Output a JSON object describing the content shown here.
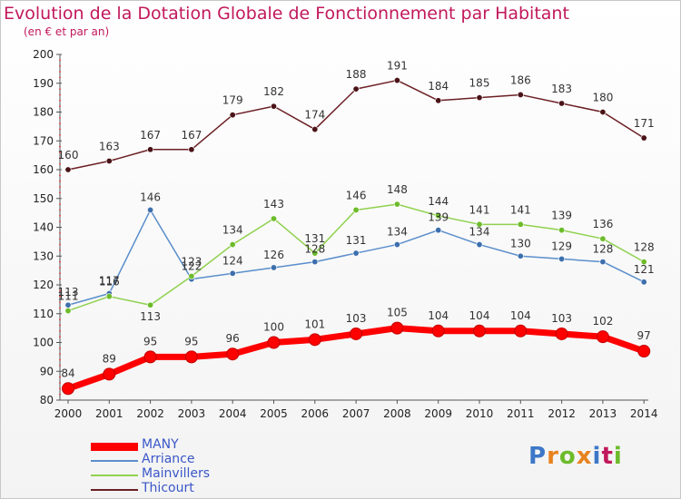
{
  "title": "Evolution de la Dotation Globale de Fonctionnement par Habitant",
  "subtitle": "(en € et par an)",
  "brand": "Proxiti",
  "chart_data": {
    "type": "line",
    "title": "Evolution de la Dotation Globale de Fonctionnement par Habitant",
    "subtitle": "(en € et par an)",
    "xlabel": "",
    "ylabel": "",
    "ylim": [
      80,
      200
    ],
    "yticks": [
      80,
      90,
      100,
      110,
      120,
      130,
      140,
      150,
      160,
      170,
      180,
      190,
      200
    ],
    "grid": false,
    "legend": "bottom-left",
    "categories": [
      "2000",
      "2001",
      "2002",
      "2003",
      "2004",
      "2005",
      "2006",
      "2007",
      "2008",
      "2009",
      "2010",
      "2011",
      "2012",
      "2013",
      "2014"
    ],
    "series": [
      {
        "name": "MANY",
        "color": "#ff0000",
        "values": [
          84,
          89,
          95,
          95,
          96,
          100,
          101,
          103,
          105,
          104,
          104,
          104,
          103,
          102,
          97
        ]
      },
      {
        "name": "Arriance",
        "color": "#5a8ecb",
        "values": [
          113,
          117,
          146,
          122,
          124,
          126,
          128,
          131,
          134,
          139,
          134,
          130,
          129,
          128,
          121
        ]
      },
      {
        "name": "Mainvillers",
        "color": "#8fd14f",
        "values": [
          111,
          116,
          113,
          123,
          134,
          143,
          131,
          146,
          148,
          144,
          141,
          141,
          139,
          136,
          128
        ]
      },
      {
        "name": "Thicourt",
        "color": "#6b1f24",
        "values": [
          160,
          163,
          167,
          167,
          179,
          182,
          174,
          188,
          191,
          184,
          185,
          186,
          183,
          180,
          171
        ]
      }
    ]
  }
}
